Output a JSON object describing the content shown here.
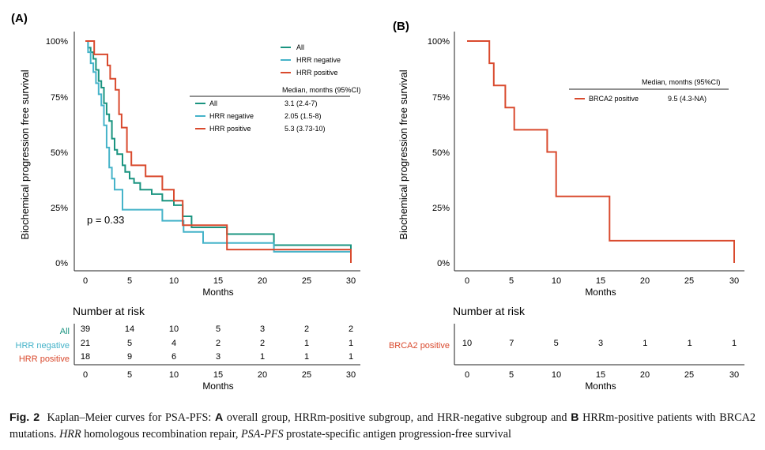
{
  "chart_data": [
    {
      "type": "line",
      "panel_label": "(A)",
      "ylabel": "Biochemical progression free survival",
      "xlabel": "Months",
      "x_ticks": [
        "0",
        "5",
        "10",
        "15",
        "20",
        "25",
        "30"
      ],
      "y_ticks": [
        "0%",
        "25%",
        "50%",
        "75%",
        "100%"
      ],
      "xlim": [
        0,
        30
      ],
      "ylim": [
        0,
        1
      ],
      "annotation": "p = 0.33",
      "series": [
        {
          "name": "All",
          "color": "#1a9480",
          "x": [
            0,
            0.3,
            0.6,
            0.9,
            1.2,
            1.5,
            1.8,
            2.1,
            2.4,
            2.7,
            3.0,
            3.3,
            3.6,
            3.9,
            4.2,
            4.5,
            5.0,
            5.5,
            6.2,
            7.5,
            8.7,
            9.3,
            10,
            11,
            12,
            16,
            21.3,
            30
          ],
          "y": [
            1.0,
            0.97,
            0.95,
            0.92,
            0.87,
            0.82,
            0.79,
            0.72,
            0.67,
            0.64,
            0.56,
            0.51,
            0.49,
            0.49,
            0.44,
            0.41,
            0.38,
            0.36,
            0.33,
            0.31,
            0.28,
            0.28,
            0.26,
            0.21,
            0.16,
            0.13,
            0.08,
            0.05
          ],
          "end": 0.0
        },
        {
          "name": "HRR negative",
          "color": "#45b3c9",
          "x": [
            0,
            0.3,
            0.6,
            0.9,
            1.2,
            1.5,
            1.8,
            2.1,
            2.4,
            2.7,
            3.0,
            3.3,
            4.2,
            8.7,
            10.3,
            11.1,
            13.3,
            16,
            21.3,
            30
          ],
          "y": [
            1.0,
            0.95,
            0.9,
            0.86,
            0.81,
            0.76,
            0.71,
            0.62,
            0.52,
            0.43,
            0.38,
            0.33,
            0.24,
            0.19,
            0.19,
            0.14,
            0.09,
            0.09,
            0.05,
            0.05
          ],
          "end": null
        },
        {
          "name": "HRR positive",
          "color": "#d94a2e",
          "x": [
            0,
            1.0,
            2.5,
            2.8,
            3.4,
            3.8,
            4.1,
            4.7,
            5.2,
            6.8,
            8.7,
            10,
            11,
            16,
            30
          ],
          "y": [
            1.0,
            0.94,
            0.89,
            0.83,
            0.78,
            0.67,
            0.61,
            0.5,
            0.44,
            0.39,
            0.33,
            0.28,
            0.17,
            0.06,
            0.06
          ],
          "end": 0.0
        }
      ],
      "legend": [
        "All",
        "HRR negative",
        "HRR positive"
      ],
      "median_table": {
        "header": "Median, months (95%CI)",
        "rows": [
          {
            "label": "All",
            "value": "3.1 (2.4-7)",
            "color": "#1a9480"
          },
          {
            "label": "HRR negative",
            "value": "2.05 (1.5-8)",
            "color": "#45b3c9"
          },
          {
            "label": "HRR positive",
            "value": "5.3 (3.73-10)",
            "color": "#d94a2e"
          }
        ]
      },
      "risk_table": {
        "title": "Number at risk",
        "xlabel": "Months",
        "x_ticks": [
          "0",
          "5",
          "10",
          "15",
          "20",
          "25",
          "30"
        ],
        "rows": [
          {
            "label": "All",
            "color": "#1a9480",
            "values": [
              "39",
              "14",
              "10",
              "5",
              "3",
              "2",
              "2"
            ]
          },
          {
            "label": "HRR negative",
            "color": "#45b3c9",
            "values": [
              "21",
              "5",
              "4",
              "2",
              "2",
              "1",
              "1"
            ]
          },
          {
            "label": "HRR positive",
            "color": "#d94a2e",
            "values": [
              "18",
              "9",
              "6",
              "3",
              "1",
              "1",
              "1"
            ]
          }
        ]
      }
    },
    {
      "type": "line",
      "panel_label": "(B)",
      "ylabel": "Biochemical progression free survival",
      "xlabel": "Months",
      "x_ticks": [
        "0",
        "5",
        "10",
        "15",
        "20",
        "25",
        "30"
      ],
      "y_ticks": [
        "0%",
        "25%",
        "50%",
        "75%",
        "100%"
      ],
      "xlim": [
        0,
        30
      ],
      "ylim": [
        0,
        1
      ],
      "series": [
        {
          "name": "BRCA2 positive",
          "color": "#d94a2e",
          "x": [
            0,
            2.5,
            3.0,
            4.3,
            5.3,
            9.0,
            10.0,
            16.0,
            30
          ],
          "y": [
            1.0,
            0.9,
            0.8,
            0.7,
            0.6,
            0.5,
            0.3,
            0.1,
            0.1
          ],
          "end": 0.0
        }
      ],
      "median_table": {
        "header": "Median, months (95%CI)",
        "rows": [
          {
            "label": "BRCA2 positive",
            "value": "9.5 (4.3-NA)",
            "color": "#d94a2e"
          }
        ]
      },
      "risk_table": {
        "title": "Number at risk",
        "xlabel": "Months",
        "x_ticks": [
          "0",
          "5",
          "10",
          "15",
          "20",
          "25",
          "30"
        ],
        "rows": [
          {
            "label": "BRCA2 positive",
            "color": "#d94a2e",
            "values": [
              "10",
              "7",
              "5",
              "3",
              "1",
              "1",
              "1"
            ]
          }
        ]
      }
    }
  ],
  "caption": {
    "label": "Fig. 2",
    "text_1": "Kaplan–Meier curves for PSA-PFS: ",
    "bold_a": "A",
    "text_2": " overall group, HRRm-positive subgroup, and HRR-negative subgroup and ",
    "bold_b": "B",
    "text_3": " HRRm-positive patients with BRCA2 mutations. ",
    "abbr_1": "HRR",
    "text_4": " homologous recombination repair, ",
    "abbr_2": "PSA-PFS",
    "text_5": " prostate-specific antigen progression-free survival"
  }
}
